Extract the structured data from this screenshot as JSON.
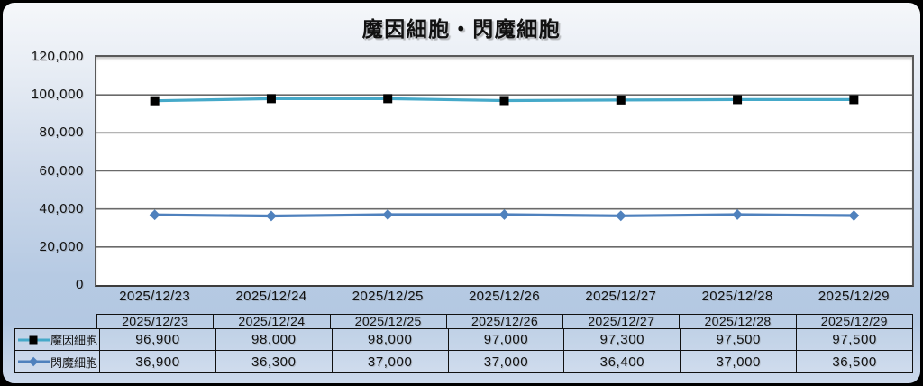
{
  "title": "魔因細胞・閃魔細胞",
  "chart_data": {
    "type": "line",
    "categories": [
      "2025/12/23",
      "2025/12/24",
      "2025/12/25",
      "2025/12/26",
      "2025/12/27",
      "2025/12/28",
      "2025/12/29"
    ],
    "series": [
      {
        "name": "魔因細胞",
        "line_color": "#45A9C9",
        "marker": "square",
        "marker_color": "#000000",
        "values": [
          96900,
          98000,
          98000,
          97000,
          97300,
          97500,
          97500
        ]
      },
      {
        "name": "閃魔細胞",
        "line_color": "#4F81BD",
        "marker": "diamond",
        "marker_color": "#4F81BD",
        "values": [
          36900,
          36300,
          37000,
          37000,
          36400,
          37000,
          36500
        ]
      }
    ],
    "title": "魔因細胞・閃魔細胞",
    "xlabel": "",
    "ylabel": "",
    "ylim": [
      0,
      120000
    ],
    "yticks": [
      0,
      20000,
      40000,
      60000,
      80000,
      100000,
      120000
    ],
    "ytick_labels": [
      "0",
      "20,000",
      "40,000",
      "60,000",
      "80,000",
      "100,000",
      "120,000"
    ],
    "grid": true,
    "grid_color": "#6a6a6a",
    "plot_bg": "#ffffff",
    "legend_position": "table-left"
  },
  "table": {
    "header_dates": [
      "2025/12/23",
      "2025/12/24",
      "2025/12/25",
      "2025/12/26",
      "2025/12/27",
      "2025/12/28",
      "2025/12/29"
    ],
    "rows": [
      {
        "label": "魔因細胞",
        "values": [
          "96,900",
          "98,000",
          "98,000",
          "97,000",
          "97,300",
          "97,500",
          "97,500"
        ]
      },
      {
        "label": "閃魔細胞",
        "values": [
          "36,900",
          "36,300",
          "37,000",
          "37,000",
          "36,400",
          "37,000",
          "36,500"
        ]
      }
    ]
  },
  "colors": {
    "background_top": "#f5f7fa",
    "background_bottom": "#ccd9ec",
    "frame_border": "#000000",
    "text": "#111111"
  }
}
